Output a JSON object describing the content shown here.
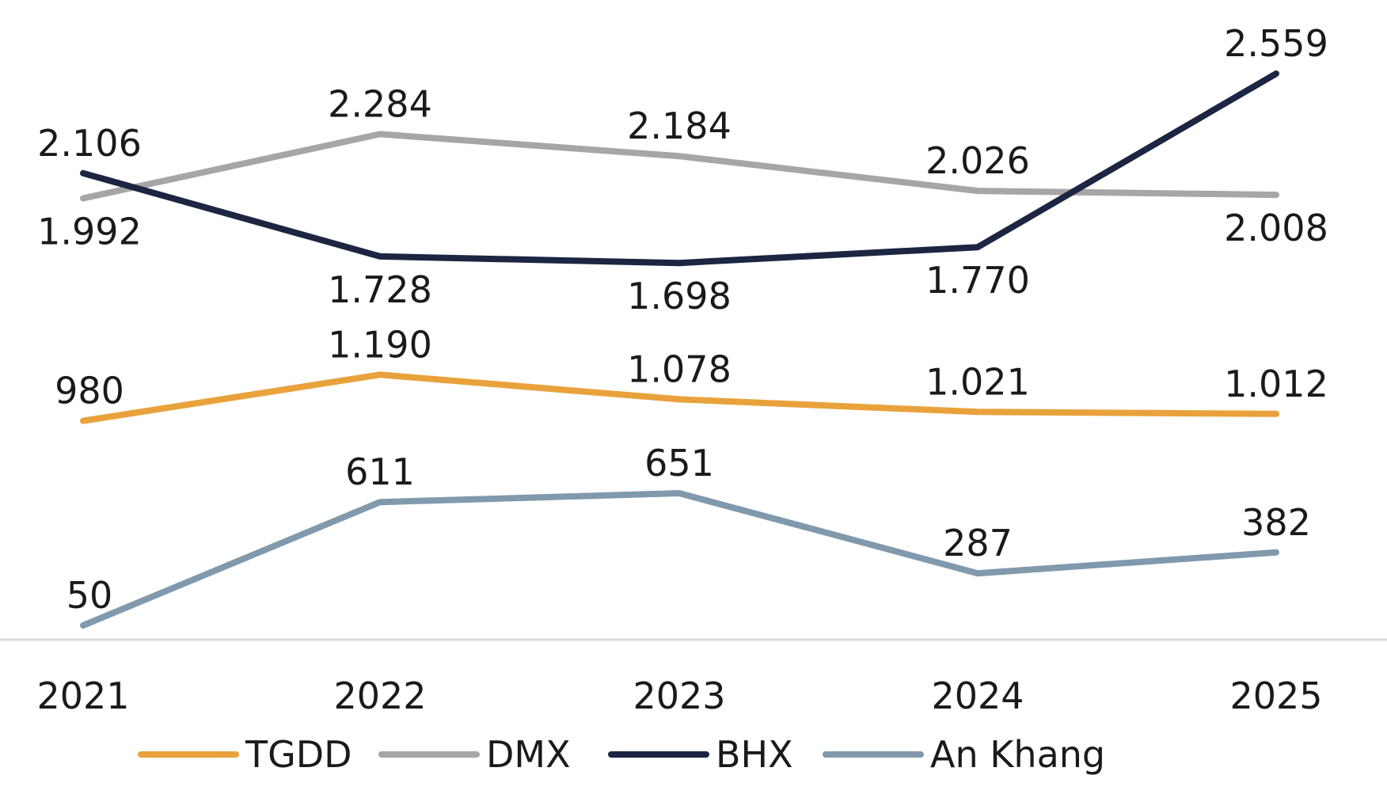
{
  "chart_data": {
    "type": "line",
    "title": "",
    "xlabel": "",
    "ylabel": "",
    "categories": [
      "2021",
      "2022",
      "2023",
      "2024",
      "2025"
    ],
    "grid": false,
    "legend": "bottom",
    "series": [
      {
        "name": "TGDD",
        "color": "#E9A23B",
        "values": [
          980,
          1190,
          1078,
          1021,
          1012
        ],
        "labels": [
          "980",
          "1.190",
          "1.078",
          "1.021",
          "1.012"
        ]
      },
      {
        "name": "DMX",
        "color": "#A6A6A6",
        "values": [
          1992,
          2284,
          2184,
          2026,
          2008
        ],
        "labels": [
          "1.992",
          "2.284",
          "2.184",
          "2.026",
          "2.008"
        ]
      },
      {
        "name": "BHX",
        "color": "#1C2541",
        "values": [
          2106,
          1728,
          1698,
          1770,
          2559
        ],
        "labels": [
          "2.106",
          "1.728",
          "1.698",
          "1.770",
          "2.559"
        ]
      },
      {
        "name": "An Khang",
        "color": "#8099AD",
        "values": [
          50,
          611,
          651,
          287,
          382
        ],
        "labels": [
          "50",
          "611",
          "651",
          "287",
          "382"
        ]
      }
    ]
  }
}
